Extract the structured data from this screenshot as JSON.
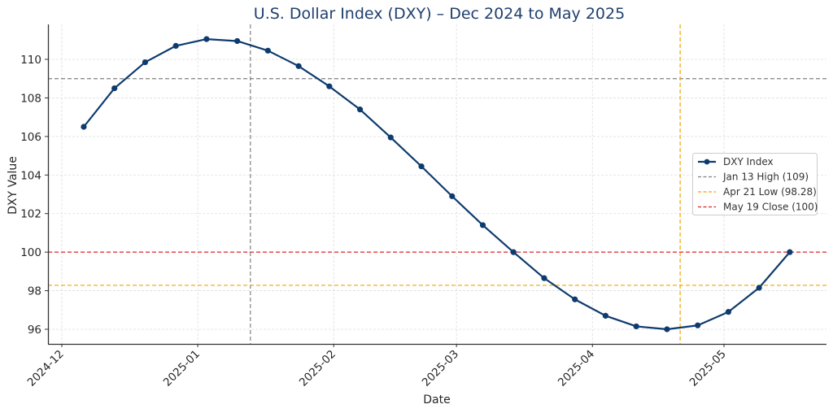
{
  "chart_data": {
    "type": "line",
    "title": "U.S. Dollar Index (DXY) – Dec 2024 to May 2025",
    "xlabel": "Date",
    "ylabel": "DXY Value",
    "ylim": [
      95.2,
      111.8
    ],
    "yticks": [
      96,
      98,
      100,
      102,
      104,
      106,
      108,
      110
    ],
    "xticks": [
      "2024-12",
      "2025-01",
      "2025-02",
      "2025-03",
      "2025-04",
      "2025-05"
    ],
    "grid": true,
    "legend_position": "center right",
    "series": [
      {
        "name": "DXY Index",
        "color": "#0d3b6e",
        "marker": "circle",
        "x": [
          "2024-12-06",
          "2024-12-13",
          "2024-12-20",
          "2024-12-27",
          "2025-01-03",
          "2025-01-10",
          "2025-01-17",
          "2025-01-24",
          "2025-01-31",
          "2025-02-07",
          "2025-02-14",
          "2025-02-21",
          "2025-02-28",
          "2025-03-07",
          "2025-03-14",
          "2025-03-21",
          "2025-03-28",
          "2025-04-04",
          "2025-04-11",
          "2025-04-18",
          "2025-04-25",
          "2025-05-02",
          "2025-05-09",
          "2025-05-16"
        ],
        "values": [
          106.5,
          108.5,
          109.85,
          110.7,
          111.05,
          110.95,
          110.45,
          109.65,
          108.6,
          107.4,
          105.95,
          104.45,
          102.9,
          101.4,
          100.0,
          98.65,
          97.55,
          96.7,
          96.15,
          96.0,
          96.2,
          96.9,
          98.15,
          100.0
        ]
      }
    ],
    "reference_lines": [
      {
        "name": "Jan 13 High (109)",
        "orientation": "both",
        "y": 109,
        "x": "2025-01-13",
        "color": "#808080"
      },
      {
        "name": "Apr 21 Low (98.28)",
        "orientation": "both",
        "y": 98.28,
        "x": "2025-04-21",
        "color": "#f0a500"
      },
      {
        "name": "May 19 Close (100)",
        "orientation": "horizontal",
        "y": 100,
        "color": "#d62728"
      }
    ]
  },
  "legend": {
    "items": [
      {
        "label": "DXY Index",
        "color": "#0d3b6e",
        "style": "solid-marker"
      },
      {
        "label": "Jan 13 High (109)",
        "color": "#808080",
        "style": "dashed"
      },
      {
        "label": "Apr 21 Low (98.28)",
        "color": "#f0a500",
        "style": "dashed"
      },
      {
        "label": "May 19 Close (100)",
        "color": "#d62728",
        "style": "dashed"
      }
    ]
  }
}
